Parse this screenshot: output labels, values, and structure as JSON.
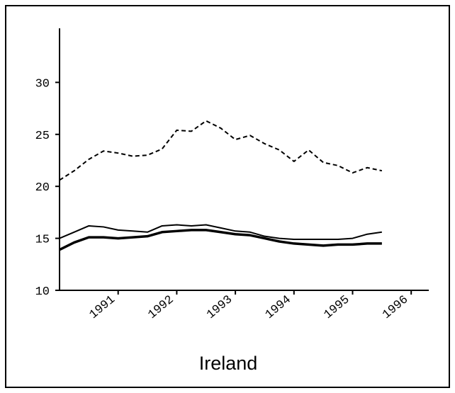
{
  "chart_data": {
    "type": "line",
    "xlabel": "Ireland",
    "x": [
      1990,
      1990.25,
      1990.5,
      1990.75,
      1991,
      1991.25,
      1991.5,
      1991.75,
      1992,
      1992.25,
      1992.5,
      1992.75,
      1993,
      1993.25,
      1993.5,
      1993.75,
      1994,
      1994.25,
      1994.5,
      1994.75,
      1995,
      1995.25,
      1995.5
    ],
    "series": [
      {
        "color": "#000000",
        "dash": "dashed",
        "width": 2,
        "values": [
          20.6,
          21.5,
          22.6,
          23.4,
          23.2,
          22.9,
          23.0,
          23.6,
          25.4,
          25.3,
          26.3,
          25.6,
          24.5,
          24.9,
          24.1,
          23.5,
          22.4,
          23.5,
          22.3,
          22.0,
          21.3,
          21.8,
          21.5
        ]
      },
      {
        "color": "#000000",
        "dash": "solid",
        "width": 2,
        "values": [
          15.0,
          15.6,
          16.2,
          16.1,
          15.8,
          15.7,
          15.6,
          16.2,
          16.3,
          16.2,
          16.3,
          16.0,
          15.7,
          15.6,
          15.2,
          15.0,
          14.9,
          14.9,
          14.9,
          14.9,
          15.0,
          15.4,
          15.6
        ]
      },
      {
        "color": "#000000",
        "dash": "solid",
        "width": 3.5,
        "values": [
          13.9,
          14.6,
          15.1,
          15.1,
          15.0,
          15.1,
          15.2,
          15.6,
          15.7,
          15.8,
          15.8,
          15.6,
          15.4,
          15.3,
          15.0,
          14.7,
          14.5,
          14.4,
          14.3,
          14.4,
          14.4,
          14.5,
          14.5
        ]
      }
    ],
    "xlim": [
      1990,
      1996.3
    ],
    "xticks": [
      1991,
      1992,
      1993,
      1994,
      1995,
      1996
    ],
    "ylim": [
      10,
      35.2
    ],
    "yticks": [
      10,
      15,
      20,
      25,
      30
    ]
  }
}
